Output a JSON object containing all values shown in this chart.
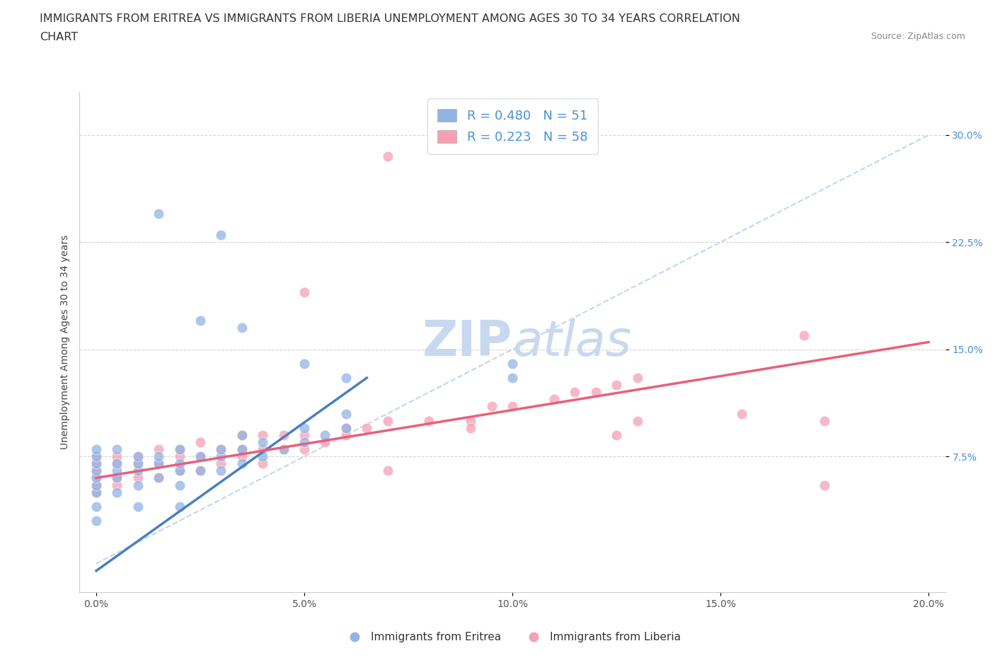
{
  "title_line1": "IMMIGRANTS FROM ERITREA VS IMMIGRANTS FROM LIBERIA UNEMPLOYMENT AMONG AGES 30 TO 34 YEARS CORRELATION",
  "title_line2": "CHART",
  "source_text": "Source: ZipAtlas.com",
  "ylabel": "Unemployment Among Ages 30 to 34 years",
  "xlim": [
    0.0,
    0.2
  ],
  "ylim": [
    -0.02,
    0.33
  ],
  "xtick_labels": [
    "0.0%",
    "5.0%",
    "10.0%",
    "15.0%",
    "20.0%"
  ],
  "xtick_vals": [
    0.0,
    0.05,
    0.1,
    0.15,
    0.2
  ],
  "ytick_labels": [
    "7.5%",
    "15.0%",
    "22.5%",
    "30.0%"
  ],
  "ytick_vals": [
    0.075,
    0.15,
    0.225,
    0.3
  ],
  "eritrea_color": "#92b4e3",
  "liberia_color": "#f4a0b5",
  "eritrea_line_color": "#4a7fc1",
  "liberia_line_color": "#e8607a",
  "ref_line_color": "#b8cfe8",
  "watermark_color": "#dce8f5",
  "R_eritrea": 0.48,
  "N_eritrea": 51,
  "R_liberia": 0.223,
  "N_liberia": 58,
  "legend_label_eritrea": "Immigrants from Eritrea",
  "legend_label_liberia": "Immigrants from Liberia",
  "title_fontsize": 11.5,
  "tick_fontsize": 10,
  "legend_fontsize": 11,
  "source_fontsize": 9,
  "eritrea_x": [
    0.0,
    0.0,
    0.0,
    0.0,
    0.0,
    0.0,
    0.0,
    0.0,
    0.005,
    0.005,
    0.005,
    0.005,
    0.005,
    0.01,
    0.01,
    0.01,
    0.01,
    0.015,
    0.015,
    0.015,
    0.02,
    0.02,
    0.02,
    0.02,
    0.025,
    0.025,
    0.03,
    0.03,
    0.03,
    0.035,
    0.035,
    0.035,
    0.04,
    0.04,
    0.045,
    0.05,
    0.05,
    0.055,
    0.06,
    0.06,
    0.0,
    0.01,
    0.02,
    0.05,
    0.06,
    0.1,
    0.1,
    0.015,
    0.025,
    0.03,
    0.035
  ],
  "eritrea_y": [
    0.05,
    0.055,
    0.06,
    0.065,
    0.07,
    0.075,
    0.08,
    0.04,
    0.05,
    0.06,
    0.065,
    0.07,
    0.08,
    0.055,
    0.065,
    0.07,
    0.075,
    0.06,
    0.07,
    0.075,
    0.055,
    0.065,
    0.07,
    0.08,
    0.065,
    0.075,
    0.065,
    0.075,
    0.08,
    0.07,
    0.08,
    0.09,
    0.075,
    0.085,
    0.08,
    0.085,
    0.095,
    0.09,
    0.095,
    0.105,
    0.03,
    0.04,
    0.04,
    0.14,
    0.13,
    0.13,
    0.14,
    0.245,
    0.17,
    0.23,
    0.165
  ],
  "liberia_x": [
    0.0,
    0.0,
    0.0,
    0.0,
    0.0,
    0.0,
    0.005,
    0.005,
    0.005,
    0.005,
    0.01,
    0.01,
    0.01,
    0.015,
    0.015,
    0.015,
    0.02,
    0.02,
    0.02,
    0.025,
    0.025,
    0.025,
    0.03,
    0.03,
    0.035,
    0.035,
    0.035,
    0.04,
    0.04,
    0.04,
    0.045,
    0.045,
    0.05,
    0.05,
    0.055,
    0.06,
    0.06,
    0.065,
    0.07,
    0.08,
    0.09,
    0.095,
    0.1,
    0.11,
    0.115,
    0.12,
    0.125,
    0.13,
    0.05,
    0.09,
    0.17,
    0.175,
    0.07,
    0.155,
    0.175,
    0.125,
    0.13,
    0.07
  ],
  "liberia_y": [
    0.05,
    0.055,
    0.06,
    0.065,
    0.07,
    0.075,
    0.055,
    0.06,
    0.07,
    0.075,
    0.06,
    0.07,
    0.075,
    0.06,
    0.07,
    0.08,
    0.065,
    0.075,
    0.08,
    0.065,
    0.075,
    0.085,
    0.07,
    0.08,
    0.075,
    0.08,
    0.09,
    0.07,
    0.08,
    0.09,
    0.08,
    0.09,
    0.08,
    0.09,
    0.085,
    0.09,
    0.095,
    0.095,
    0.1,
    0.1,
    0.1,
    0.11,
    0.11,
    0.115,
    0.12,
    0.12,
    0.125,
    0.13,
    0.19,
    0.095,
    0.16,
    0.055,
    0.285,
    0.105,
    0.1,
    0.09,
    0.1,
    0.065
  ],
  "eritrea_line_x": [
    0.0,
    0.065
  ],
  "eritrea_line_y": [
    -0.005,
    0.13
  ],
  "liberia_line_x": [
    0.0,
    0.2
  ],
  "liberia_line_y": [
    0.06,
    0.155
  ]
}
